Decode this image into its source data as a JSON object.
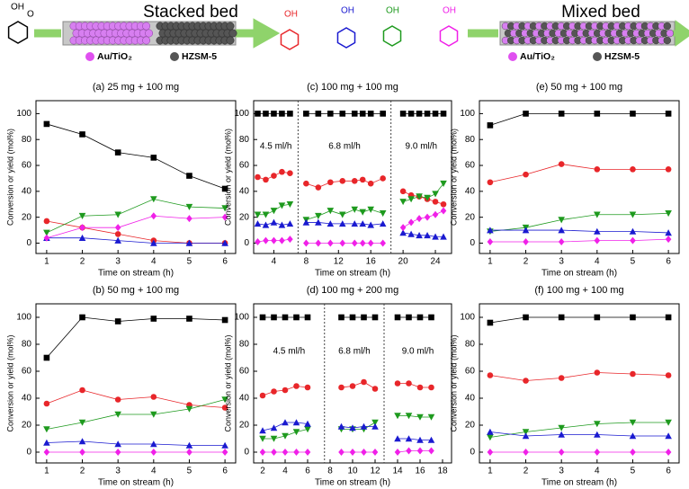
{
  "header": {
    "stacked": {
      "title": "Stacked bed",
      "legend": [
        "Au/TiO₂",
        "HZSM-5"
      ]
    },
    "mixed": {
      "title": "Mixed bed",
      "legend": [
        "Au/TiO₂",
        "HZSM-5"
      ]
    },
    "molecule_labels": [
      "OH",
      "O",
      "OH",
      "OH",
      "OH",
      "OH"
    ]
  },
  "chart_data": [
    {
      "type": "line",
      "title": "(a) 25 mg + 100 mg",
      "xlabel": "Time on stream (h)",
      "ylabel": "Conversion or yield (mol%)",
      "x": [
        1,
        2,
        3,
        4,
        5,
        6
      ],
      "xlim": [
        0.7,
        6.3
      ],
      "ylim": [
        -8,
        110
      ],
      "xticks": [
        1,
        2,
        3,
        4,
        5,
        6
      ],
      "yticks": [
        0,
        20,
        40,
        60,
        80,
        100
      ],
      "series": [
        {
          "color": "#000000",
          "marker": "square",
          "values": [
            92,
            84,
            70,
            66,
            52,
            42
          ]
        },
        {
          "color": "#e8262a",
          "marker": "circle",
          "values": [
            17,
            12,
            7,
            2,
            0,
            0
          ]
        },
        {
          "color": "#1e9a1e",
          "marker": "tri-down",
          "values": [
            8,
            21,
            22,
            34,
            28,
            27
          ]
        },
        {
          "color": "#1a1ad0",
          "marker": "tri-up",
          "values": [
            4,
            4,
            2,
            0,
            0,
            0
          ]
        },
        {
          "color": "#f020e8",
          "marker": "diamond",
          "values": [
            4,
            12,
            12,
            21,
            19,
            20
          ]
        }
      ]
    },
    {
      "type": "line",
      "title": "(b) 50 mg + 100 mg",
      "xlabel": "Time on stream (h)",
      "ylabel": "Conversion or yield (mol%)",
      "x": [
        1,
        2,
        3,
        4,
        5,
        6
      ],
      "xlim": [
        0.7,
        6.3
      ],
      "ylim": [
        -8,
        110
      ],
      "xticks": [
        1,
        2,
        3,
        4,
        5,
        6
      ],
      "yticks": [
        0,
        20,
        40,
        60,
        80,
        100
      ],
      "series": [
        {
          "color": "#000000",
          "marker": "square",
          "values": [
            70,
            100,
            97,
            99,
            99,
            98
          ]
        },
        {
          "color": "#e8262a",
          "marker": "circle",
          "values": [
            36,
            46,
            39,
            41,
            35,
            33
          ]
        },
        {
          "color": "#1e9a1e",
          "marker": "tri-down",
          "values": [
            17,
            22,
            28,
            28,
            32,
            39
          ]
        },
        {
          "color": "#1a1ad0",
          "marker": "tri-up",
          "values": [
            7,
            8,
            6,
            6,
            5,
            5
          ]
        },
        {
          "color": "#f020e8",
          "marker": "diamond",
          "values": [
            0,
            0,
            0,
            0,
            0,
            0
          ]
        }
      ]
    },
    {
      "type": "line",
      "title": "(c) 100 mg + 100 mg",
      "xlabel": "Time on stream (h)",
      "ylabel": "Conversion or yield (mol%)",
      "x": [
        2,
        3,
        4,
        5,
        6,
        7,
        8,
        9.5,
        11,
        12.5,
        14,
        15,
        16,
        17.5,
        18.5,
        20,
        21,
        22,
        23,
        24,
        25
      ],
      "xlim": [
        1.5,
        26
      ],
      "ylim": [
        -8,
        110
      ],
      "xticks": [
        4,
        8,
        12,
        16,
        20,
        24
      ],
      "yticks": [
        0,
        20,
        40,
        60,
        80,
        100
      ],
      "separators": [
        7,
        18.5
      ],
      "annotations": [
        "4.5 ml/h",
        "6.8 ml/h",
        "9.0 ml/h"
      ],
      "series": [
        {
          "color": "#000000",
          "marker": "square",
          "values": [
            100,
            100,
            100,
            100,
            100,
            null,
            100,
            100,
            100,
            100,
            100,
            100,
            100,
            100,
            null,
            100,
            100,
            100,
            100,
            100,
            100
          ]
        },
        {
          "color": "#e8262a",
          "marker": "circle",
          "values": [
            51,
            49,
            52,
            55,
            54,
            null,
            46,
            43,
            47,
            48,
            48,
            49,
            46,
            50,
            null,
            40,
            37,
            36,
            34,
            32,
            30
          ]
        },
        {
          "color": "#1e9a1e",
          "marker": "tri-down",
          "values": [
            22,
            22,
            25,
            29,
            30,
            null,
            18,
            21,
            25,
            22,
            26,
            24,
            26,
            23,
            null,
            32,
            34,
            36,
            35,
            38,
            46
          ]
        },
        {
          "color": "#1a1ad0",
          "marker": "tri-up",
          "values": [
            15,
            14,
            16,
            14,
            15,
            null,
            16,
            16,
            15,
            15,
            15,
            15,
            14,
            15,
            null,
            8,
            7,
            6,
            6,
            5,
            5
          ]
        },
        {
          "color": "#f020e8",
          "marker": "diamond",
          "values": [
            1,
            2,
            2,
            2,
            3,
            null,
            0,
            0,
            0,
            0,
            0,
            0,
            0,
            0,
            null,
            12,
            16,
            19,
            20,
            22,
            25
          ]
        }
      ]
    },
    {
      "type": "line",
      "title": "(d) 100 mg + 200 mg",
      "xlabel": "Time on stream (h)",
      "ylabel": "Conversion or yield (mol%)",
      "x": [
        2,
        3,
        4,
        5,
        6,
        7.5,
        9,
        10,
        11,
        12,
        12.8,
        14,
        15,
        16,
        17
      ],
      "xlim": [
        1.2,
        18.8
      ],
      "ylim": [
        -8,
        110
      ],
      "xticks": [
        2,
        4,
        6,
        8,
        10,
        12,
        14,
        16,
        18
      ],
      "yticks": [
        0,
        20,
        40,
        60,
        80,
        100
      ],
      "separators": [
        7.5,
        12.8
      ],
      "annotations": [
        "4.5 ml/h",
        "6.8 ml/h",
        "9.0 ml/h"
      ],
      "series": [
        {
          "color": "#000000",
          "marker": "square",
          "values": [
            100,
            100,
            100,
            100,
            100,
            null,
            100,
            100,
            100,
            100,
            null,
            100,
            100,
            100,
            100
          ]
        },
        {
          "color": "#e8262a",
          "marker": "circle",
          "values": [
            42,
            45,
            46,
            49,
            48,
            null,
            48,
            49,
            52,
            47,
            null,
            51,
            51,
            48,
            48
          ]
        },
        {
          "color": "#1e9a1e",
          "marker": "tri-down",
          "values": [
            10,
            10,
            12,
            15,
            17,
            null,
            17,
            17,
            17,
            22,
            null,
            27,
            27,
            26,
            26
          ]
        },
        {
          "color": "#1a1ad0",
          "marker": "tri-up",
          "values": [
            16,
            18,
            22,
            22,
            21,
            null,
            19,
            18,
            19,
            19,
            null,
            10,
            10,
            9,
            9
          ]
        },
        {
          "color": "#f020e8",
          "marker": "diamond",
          "values": [
            0,
            0,
            0,
            0,
            0,
            null,
            0,
            0,
            0,
            0,
            null,
            0,
            1,
            1,
            1
          ]
        }
      ]
    },
    {
      "type": "line",
      "title": "(e) 50 mg + 100 mg",
      "xlabel": "Time on stream (h)",
      "ylabel": "Conversion or yield (mol%)",
      "x": [
        1,
        2,
        3,
        4,
        5,
        6
      ],
      "xlim": [
        0.7,
        6.3
      ],
      "ylim": [
        -8,
        110
      ],
      "xticks": [
        1,
        2,
        3,
        4,
        5,
        6
      ],
      "yticks": [
        0,
        20,
        40,
        60,
        80,
        100
      ],
      "series": [
        {
          "color": "#000000",
          "marker": "square",
          "values": [
            91,
            100,
            100,
            100,
            100,
            100
          ]
        },
        {
          "color": "#e8262a",
          "marker": "circle",
          "values": [
            47,
            53,
            61,
            57,
            57,
            57
          ]
        },
        {
          "color": "#1e9a1e",
          "marker": "tri-down",
          "values": [
            9,
            12,
            18,
            22,
            22,
            23
          ]
        },
        {
          "color": "#1a1ad0",
          "marker": "tri-up",
          "values": [
            10,
            10,
            10,
            9,
            9,
            8
          ]
        },
        {
          "color": "#f020e8",
          "marker": "diamond",
          "values": [
            1,
            1,
            1,
            2,
            2,
            3
          ]
        }
      ]
    },
    {
      "type": "line",
      "title": "(f) 100 mg + 100 mg",
      "xlabel": "Time on stream (h)",
      "ylabel": "Conversion or yield (mol%)",
      "x": [
        1,
        2,
        3,
        4,
        5,
        6
      ],
      "xlim": [
        0.7,
        6.3
      ],
      "ylim": [
        -8,
        110
      ],
      "xticks": [
        1,
        2,
        3,
        4,
        5,
        6
      ],
      "yticks": [
        0,
        20,
        40,
        60,
        80,
        100
      ],
      "series": [
        {
          "color": "#000000",
          "marker": "square",
          "values": [
            96,
            100,
            100,
            100,
            100,
            100
          ]
        },
        {
          "color": "#e8262a",
          "marker": "circle",
          "values": [
            57,
            53,
            55,
            59,
            58,
            57
          ]
        },
        {
          "color": "#1e9a1e",
          "marker": "tri-down",
          "values": [
            11,
            15,
            18,
            21,
            22,
            22
          ]
        },
        {
          "color": "#1a1ad0",
          "marker": "tri-up",
          "values": [
            15,
            12,
            13,
            13,
            12,
            12
          ]
        },
        {
          "color": "#f020e8",
          "marker": "diamond",
          "values": [
            0,
            0,
            0,
            0,
            0,
            0
          ]
        }
      ]
    }
  ]
}
